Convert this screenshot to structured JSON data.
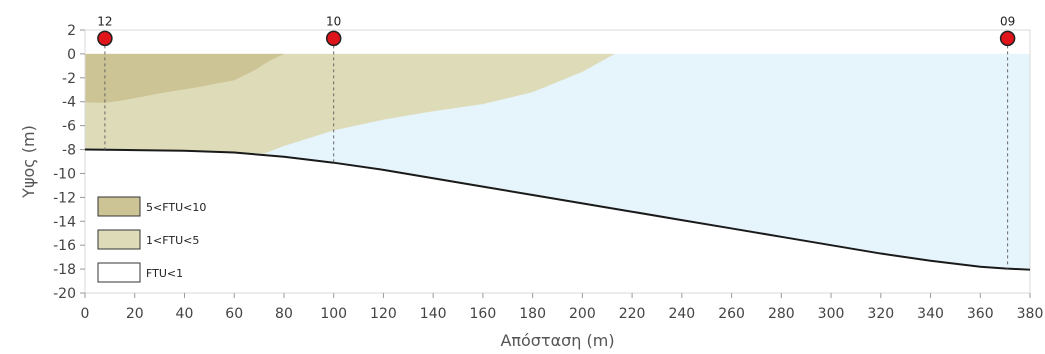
{
  "chart_data": {
    "type": "area",
    "xlabel": "Απόσταση (m)",
    "ylabel": "Υψος (m)",
    "xlim": [
      0,
      380
    ],
    "ylim": [
      -20,
      2
    ],
    "x_ticks": [
      "0",
      "20",
      "40",
      "60",
      "80",
      "100",
      "120",
      "140",
      "160",
      "180",
      "200",
      "220",
      "240",
      "260",
      "280",
      "300",
      "320",
      "340",
      "360",
      "380"
    ],
    "y_ticks": [
      "2",
      "0",
      "-2",
      "-4",
      "-6",
      "-8",
      "-10",
      "-12",
      "-14",
      "-16",
      "-18",
      "-20"
    ],
    "grid": false,
    "legend_position": "bottom-left",
    "water_surface": 0,
    "bottom_profile": {
      "x": [
        0,
        20,
        40,
        60,
        80,
        100,
        120,
        140,
        160,
        180,
        200,
        220,
        240,
        260,
        280,
        300,
        320,
        340,
        360,
        370,
        380
      ],
      "y": [
        -8,
        -8.05,
        -8.1,
        -8.25,
        -8.6,
        -9.1,
        -9.7,
        -10.4,
        -11.1,
        -11.8,
        -12.5,
        -13.2,
        -13.9,
        -14.6,
        -15.3,
        -16.0,
        -16.7,
        -17.3,
        -17.8,
        -17.95,
        -18.05
      ]
    },
    "series": [
      {
        "name": "FTU<1",
        "color": "#e6f4fb",
        "description_region": "water column below surface above bottom"
      },
      {
        "name": "1<FTU<5",
        "color": "#dedcb8",
        "boundary": {
          "x": [
            0,
            60,
            72,
            80,
            100,
            120,
            140,
            160,
            180,
            200,
            213
          ],
          "y": [
            -8,
            -8.2,
            -8.35,
            -7.7,
            -6.4,
            -5.5,
            -4.8,
            -4.2,
            -3.2,
            -1.5,
            0
          ]
        }
      },
      {
        "name": "5<FTU<10",
        "color": "#cdc496",
        "boundary": {
          "x": [
            0,
            8,
            15,
            30,
            45,
            60,
            68,
            74,
            80
          ],
          "y": [
            -4.05,
            -4.1,
            -3.9,
            -3.3,
            -2.8,
            -2.2,
            -1.4,
            -0.6,
            0
          ]
        }
      }
    ],
    "stations": [
      {
        "label": "12",
        "x": 8,
        "y": 1.3
      },
      {
        "label": "10",
        "x": 100,
        "y": 1.3
      },
      {
        "label": "09",
        "x": 371,
        "y": 1.3
      }
    ],
    "station_color": "#e0141b"
  }
}
